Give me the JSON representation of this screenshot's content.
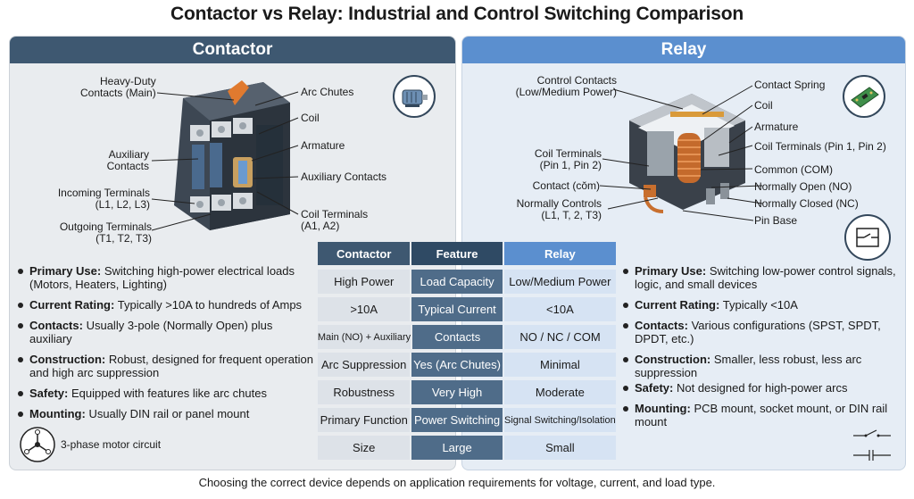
{
  "title": "Contactor vs Relay: Industrial and Control Switching Comparison",
  "left": {
    "header": "Contactor",
    "labels": {
      "heavy_duty": [
        "Heavy-Duty",
        "Contacts (Main)"
      ],
      "arc_chutes": "Arc Chutes",
      "coil": "Coil",
      "auxiliary_contacts_left": [
        "Auxiliary",
        "Contacts"
      ],
      "armature": "Armature",
      "auxiliary_contacts_right": "Auxiliary Contacts",
      "incoming": [
        "Incoming Terminals",
        "(L1, L2, L3)"
      ],
      "coil_terminals": [
        "Coil Terminals",
        "(A1, A2)"
      ],
      "outgoing": [
        "Outgoing Terminals",
        "(T1, T2, T3)"
      ]
    },
    "bullets": [
      {
        "label": "Primary Use:",
        "text": "Switching high-power electrical loads (Motors, Heaters, Lighting)"
      },
      {
        "label": "Current Rating:",
        "text": "Typically >10A to hundreds of Amps"
      },
      {
        "label": "Contacts:",
        "text": "Usually 3-pole (Normally Open) plus auxiliary"
      },
      {
        "label": "Construction:",
        "text": "Robust, designed for frequent operation and high arc suppression"
      },
      {
        "label": "Safety:",
        "text": "Equipped with features like arc chutes"
      },
      {
        "label": "Mounting:",
        "text": "Usually DIN rail or panel mount"
      }
    ],
    "motor_caption": "3-phase motor circuit",
    "icons": [
      "motor-icon",
      "three-phase-motor-icon"
    ]
  },
  "right": {
    "header": "Relay",
    "labels": {
      "control_contacts": [
        "Control Contacts",
        "(Low/Medium Power)"
      ],
      "contact_spring": "Contact Spring",
      "coil": "Coil",
      "armature": "Armature",
      "coil_terminals_left": [
        "Coil Terminals",
        "(Pin 1, Pin 2)"
      ],
      "coil_terminals_right": "Coil Terminals (Pin 1, Pin 2)",
      "common": "Common (COM)",
      "contact_com": "Contact (cŏm)",
      "normally_open": "Normally Open (NO)",
      "normally_controls": [
        "Normally Controls",
        "(L1, T, 2, T3)"
      ],
      "normally_closed": "Normally Closed (NC)",
      "pin_base": "Pin Base"
    },
    "bullets": [
      {
        "label": "Primary Use:",
        "text": "Switching low-power control signals, logic, and small devices"
      },
      {
        "label": "Current Rating:",
        "text": "Typically <10A"
      },
      {
        "label": "Contacts:",
        "text": "Various configurations (SPST, SPDT, DPDT, etc.)"
      },
      {
        "label": "Construction:",
        "text": "Smaller, less robust, less arc suppression"
      },
      {
        "label": "Safety:",
        "text": "Not designed for high-power arcs"
      },
      {
        "label": "Mounting:",
        "text": "PCB mount, socket mount, or DIN rail mount"
      }
    ],
    "icons": [
      "circuit-board-icon",
      "relay-circuit-icon",
      "switch-schematic-icon"
    ]
  },
  "table": {
    "headers": [
      "Contactor",
      "Feature",
      "Relay"
    ],
    "rows": [
      [
        "High Power",
        "Load Capacity",
        "Low/Medium Power"
      ],
      [
        ">10A",
        "Typical Current",
        "<10A"
      ],
      [
        "Main (NO) + Auxiliary",
        "Contacts",
        "NO / NC / COM"
      ],
      [
        "Arc Suppression",
        "Yes (Arc Chutes)",
        "Minimal"
      ],
      [
        "Robustness",
        "Very High",
        "Moderate"
      ],
      [
        "Primary Function",
        "Power Switching",
        "Signal Switching/Isolation"
      ],
      [
        "Size",
        "Large",
        "Small"
      ]
    ]
  },
  "footer": "Choosing the correct device depends on application requirements for voltage, current, and load type."
}
